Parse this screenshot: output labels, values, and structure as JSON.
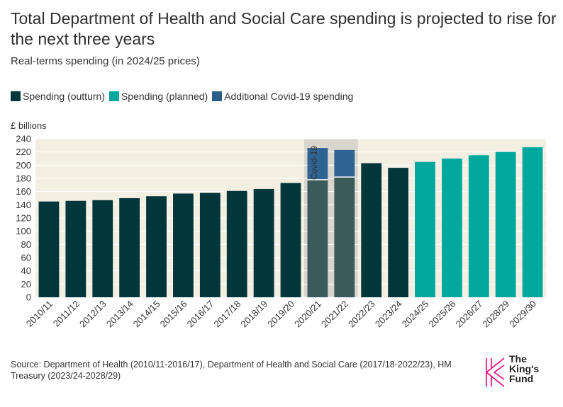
{
  "header": {
    "title": "Total Department of Health and Social Care spending is projected to rise for the next three years",
    "subtitle": "Real-terms spending (in 2024/25 prices)"
  },
  "legend": [
    {
      "label": "Spending (outturn)",
      "color": "#01373a"
    },
    {
      "label": "Spending (planned)",
      "color": "#00a89d"
    },
    {
      "label": "Additional Covid-19 spending",
      "color": "#2a5e8a"
    }
  ],
  "chart_data": {
    "type": "bar",
    "stacked": true,
    "ylabel": "£ billions",
    "ylim": [
      0,
      240
    ],
    "yticks": [
      0,
      20,
      40,
      60,
      80,
      100,
      120,
      140,
      160,
      180,
      200,
      220,
      240
    ],
    "categories": [
      "2010/11",
      "2011/12",
      "2012/13",
      "2013/14",
      "2014/15",
      "2015/16",
      "2016/17",
      "2017/18",
      "2018/19",
      "2019/20",
      "2020/21",
      "2021/22",
      "2022/23",
      "2023/24",
      "2024/25",
      "2025/26",
      "2026/27",
      "2028/29",
      "2029/30"
    ],
    "series": [
      {
        "name": "Spending (outturn)",
        "values": [
          145,
          146,
          147,
          150,
          153,
          157,
          158,
          161,
          164,
          173,
          178,
          182,
          203,
          196,
          null,
          null,
          null,
          null,
          null
        ]
      },
      {
        "name": "Spending (planned)",
        "values": [
          null,
          null,
          null,
          null,
          null,
          null,
          null,
          null,
          null,
          null,
          null,
          null,
          null,
          null,
          205,
          210,
          215,
          220,
          227
        ]
      },
      {
        "name": "Additional Covid-19 spending",
        "values": [
          null,
          null,
          null,
          null,
          null,
          null,
          null,
          null,
          null,
          null,
          48,
          41,
          null,
          null,
          null,
          null,
          null,
          null,
          null
        ]
      }
    ],
    "annotation": {
      "label": "Covid-19",
      "categories": [
        "2020/21",
        "2021/22"
      ]
    }
  },
  "source": "Source: Department of Health (2010/11-2016/17), Department of Health and Social Care (2017/18-2022/23), HM Treasury (2023/24-2028/29)",
  "logo": {
    "line1": "The",
    "line2": "King's",
    "line3": "Fund",
    "color": "#e6007e"
  },
  "colors": {
    "plot_bg": "#f4efe3",
    "covid_band": "#d9d6cd",
    "covid_outturn": "#3b5b5b",
    "covid_extra": "#2f6394",
    "axis_text": "#333333"
  }
}
